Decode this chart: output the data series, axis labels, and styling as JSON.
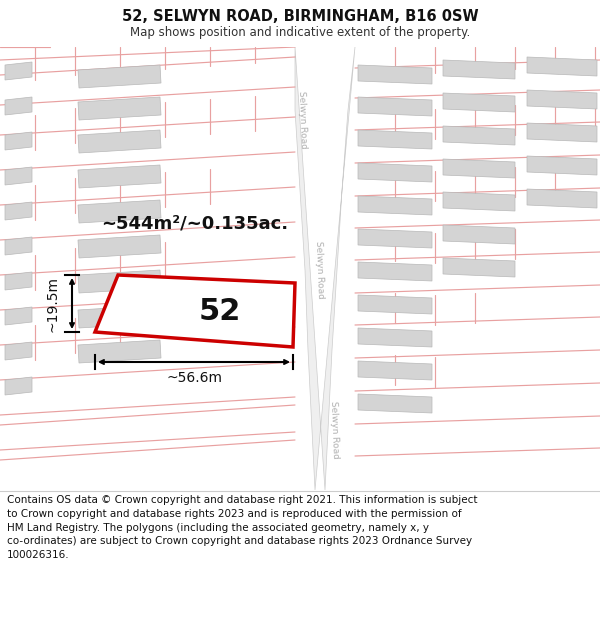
{
  "title": "52, SELWYN ROAD, BIRMINGHAM, B16 0SW",
  "subtitle": "Map shows position and indicative extent of the property.",
  "footer": "Contains OS data © Crown copyright and database right 2021. This information is subject to Crown copyright and database rights 2023 and is reproduced with the permission of HM Land Registry. The polygons (including the associated geometry, namely x, y co-ordinates) are subject to Crown copyright and database rights 2023 Ordnance Survey 100026316.",
  "area_label": "~544m²/~0.135ac.",
  "width_label": "~56.6m",
  "height_label": "~19.5m",
  "plot_number": "52",
  "bg_color": "#ffffff",
  "building_color": "#d4d4d4",
  "plot_edge_color": "#cc0000",
  "parcel_color": "#e8a0a0",
  "road_fill": "#efefef",
  "road_edge": "#cccccc",
  "road_label_color": "#b0b0b0",
  "title_fontsize": 10.5,
  "subtitle_fontsize": 8.5,
  "footer_fontsize": 7.5
}
